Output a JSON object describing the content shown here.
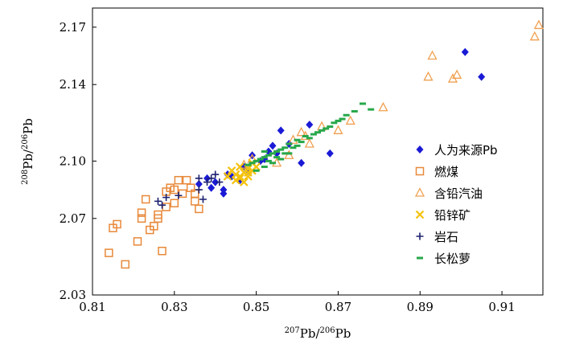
{
  "chart_data": {
    "type": "scatter",
    "x_axis": {
      "label_base": "Pb/",
      "label_sup1": "207",
      "label_sup2": "206",
      "label_tail": "Pb",
      "range": [
        0.81,
        0.92
      ],
      "ticks": [
        "0.81",
        "0.83",
        "0.85",
        "0.87",
        "0.89",
        "0.91"
      ],
      "tick_values": [
        0.81,
        0.83,
        0.85,
        0.87,
        0.89,
        0.91
      ]
    },
    "y_axis": {
      "label_base": "Pb/",
      "label_sup1": "208",
      "label_sup2": "206",
      "label_tail": "Pb",
      "range": [
        2.03,
        2.18
      ],
      "ticks": [
        "2.03",
        "2.07",
        "2.10",
        "2.14",
        "2.17"
      ],
      "tick_values": [
        2.03,
        2.07,
        2.1,
        2.14,
        2.17
      ]
    },
    "legend_placement": "right",
    "series": [
      {
        "name": "人为来源Pb",
        "marker": "diamond",
        "color": "#1a1ad6",
        "points": [
          [
            0.901,
            2.157
          ],
          [
            0.905,
            2.144
          ],
          [
            0.863,
            2.119
          ],
          [
            0.868,
            2.104
          ],
          [
            0.861,
            2.099
          ],
          [
            0.856,
            2.116
          ],
          [
            0.849,
            2.103
          ],
          [
            0.852,
            2.101
          ],
          [
            0.854,
            2.108
          ],
          [
            0.842,
            2.083
          ],
          [
            0.842,
            2.085
          ],
          [
            0.84,
            2.089
          ],
          [
            0.838,
            2.091
          ],
          [
            0.836,
            2.088
          ],
          [
            0.847,
            2.097
          ],
          [
            0.848,
            2.095
          ],
          [
            0.844,
            2.092
          ],
          [
            0.858,
            2.109
          ],
          [
            0.853,
            2.105
          ],
          [
            0.843,
            2.093
          ],
          [
            0.846,
            2.09
          ],
          [
            0.839,
            2.086
          ],
          [
            0.851,
            2.1
          ],
          [
            0.855,
            2.104
          ]
        ]
      },
      {
        "name": "燃煤",
        "marker": "square",
        "color": "#e8893a",
        "points": [
          [
            0.814,
            2.052
          ],
          [
            0.818,
            2.046
          ],
          [
            0.815,
            2.065
          ],
          [
            0.816,
            2.067
          ],
          [
            0.822,
            2.07
          ],
          [
            0.822,
            2.073
          ],
          [
            0.821,
            2.058
          ],
          [
            0.824,
            2.064
          ],
          [
            0.825,
            2.066
          ],
          [
            0.826,
            2.07
          ],
          [
            0.826,
            2.072
          ],
          [
            0.823,
            2.08
          ],
          [
            0.827,
            2.053
          ],
          [
            0.828,
            2.076
          ],
          [
            0.83,
            2.078
          ],
          [
            0.83,
            2.085
          ],
          [
            0.829,
            2.086
          ],
          [
            0.831,
            2.09
          ],
          [
            0.833,
            2.09
          ],
          [
            0.832,
            2.083
          ],
          [
            0.834,
            2.086
          ],
          [
            0.835,
            2.079
          ],
          [
            0.835,
            2.083
          ],
          [
            0.836,
            2.075
          ],
          [
            0.828,
            2.084
          ]
        ]
      },
      {
        "name": "含铅汽油",
        "marker": "triangle",
        "color": "#f0a050",
        "points": [
          [
            0.919,
            2.171
          ],
          [
            0.918,
            2.165
          ],
          [
            0.893,
            2.155
          ],
          [
            0.892,
            2.144
          ],
          [
            0.899,
            2.145
          ],
          [
            0.898,
            2.143
          ],
          [
            0.881,
            2.128
          ],
          [
            0.873,
            2.121
          ],
          [
            0.87,
            2.116
          ],
          [
            0.863,
            2.109
          ],
          [
            0.861,
            2.115
          ],
          [
            0.858,
            2.103
          ],
          [
            0.855,
            2.099
          ],
          [
            0.847,
            2.098
          ],
          [
            0.849,
            2.101
          ],
          [
            0.862,
            2.113
          ],
          [
            0.866,
            2.118
          ],
          [
            0.859,
            2.111
          ]
        ]
      },
      {
        "name": "铅锌矿",
        "marker": "x",
        "color": "#f4c20d",
        "points": [
          [
            0.845,
            2.09
          ],
          [
            0.846,
            2.092
          ],
          [
            0.847,
            2.094
          ],
          [
            0.848,
            2.096
          ],
          [
            0.849,
            2.095
          ],
          [
            0.844,
            2.095
          ],
          [
            0.846,
            2.097
          ],
          [
            0.848,
            2.092
          ],
          [
            0.85,
            2.097
          ],
          [
            0.843,
            2.092
          ],
          [
            0.847,
            2.089
          ],
          [
            0.845,
            2.093
          ],
          [
            0.849,
            2.099
          ],
          [
            0.846,
            2.091
          ],
          [
            0.848,
            2.094
          ]
        ]
      },
      {
        "name": "岩石",
        "marker": "plus",
        "color": "#1b1f6e",
        "points": [
          [
            0.826,
            2.079
          ],
          [
            0.827,
            2.077
          ],
          [
            0.828,
            2.081
          ],
          [
            0.831,
            2.082
          ],
          [
            0.836,
            2.085
          ],
          [
            0.837,
            2.08
          ],
          [
            0.838,
            2.089
          ],
          [
            0.839,
            2.091
          ],
          [
            0.84,
            2.093
          ],
          [
            0.841,
            2.089
          ],
          [
            0.836,
            2.091
          ]
        ]
      },
      {
        "name": "长松萝",
        "marker": "dash",
        "color": "#27a84a",
        "points": [
          [
            0.876,
            2.13
          ],
          [
            0.874,
            2.126
          ],
          [
            0.872,
            2.124
          ],
          [
            0.878,
            2.127
          ],
          [
            0.87,
            2.121
          ],
          [
            0.868,
            2.118
          ],
          [
            0.866,
            2.116
          ],
          [
            0.864,
            2.114
          ],
          [
            0.862,
            2.113
          ],
          [
            0.86,
            2.111
          ],
          [
            0.858,
            2.109
          ],
          [
            0.857,
            2.107
          ],
          [
            0.856,
            2.106
          ],
          [
            0.855,
            2.105
          ],
          [
            0.854,
            2.104
          ],
          [
            0.853,
            2.103
          ],
          [
            0.852,
            2.102
          ],
          [
            0.851,
            2.101
          ],
          [
            0.85,
            2.1
          ],
          [
            0.849,
            2.099
          ],
          [
            0.848,
            2.098
          ],
          [
            0.853,
            2.1
          ],
          [
            0.855,
            2.102
          ],
          [
            0.857,
            2.104
          ],
          [
            0.859,
            2.107
          ],
          [
            0.861,
            2.11
          ],
          [
            0.863,
            2.112
          ],
          [
            0.865,
            2.115
          ],
          [
            0.867,
            2.117
          ],
          [
            0.869,
            2.12
          ],
          [
            0.871,
            2.122
          ],
          [
            0.852,
            2.097
          ],
          [
            0.854,
            2.099
          ],
          [
            0.856,
            2.101
          ],
          [
            0.858,
            2.104
          ],
          [
            0.85,
            2.095
          ],
          [
            0.852,
            2.105
          ],
          [
            0.86,
            2.108
          ]
        ]
      }
    ]
  }
}
